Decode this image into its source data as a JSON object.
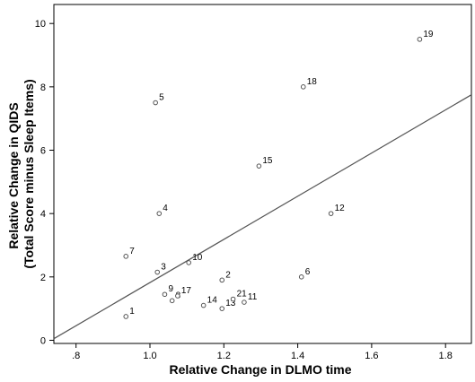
{
  "chart_data": {
    "type": "scatter",
    "title": "",
    "xlabel": "Relative Change in DLMO time",
    "ylabel_lines": [
      "Relative Change in QIDS",
      "(Total Score minus Sleep Items)"
    ],
    "xlim": [
      0.74,
      1.87
    ],
    "ylim": [
      -0.1,
      10.6
    ],
    "xticks": [
      ".8",
      "1.0",
      "1.2",
      "1.4",
      "1.6",
      "1.8"
    ],
    "xtick_values": [
      0.8,
      1.0,
      1.2,
      1.4,
      1.6,
      1.8
    ],
    "yticks": [
      "0",
      "2",
      "4",
      "6",
      "8",
      "10"
    ],
    "ytick_values": [
      0,
      2,
      4,
      6,
      8,
      10
    ],
    "points": [
      {
        "label": "1",
        "x": 0.935,
        "y": 0.75
      },
      {
        "label": "2",
        "x": 1.195,
        "y": 1.9
      },
      {
        "label": "3",
        "x": 1.02,
        "y": 2.15
      },
      {
        "label": "4",
        "x": 1.025,
        "y": 4.0
      },
      {
        "label": "5",
        "x": 1.015,
        "y": 7.5
      },
      {
        "label": "6",
        "x": 1.41,
        "y": 2.0
      },
      {
        "label": "7",
        "x": 0.935,
        "y": 2.65
      },
      {
        "label": "8",
        "x": 1.06,
        "y": 1.25
      },
      {
        "label": "9",
        "x": 1.04,
        "y": 1.45
      },
      {
        "label": "10",
        "x": 1.105,
        "y": 2.45
      },
      {
        "label": "11",
        "x": 1.255,
        "y": 1.2
      },
      {
        "label": "12",
        "x": 1.49,
        "y": 4.0
      },
      {
        "label": "13",
        "x": 1.195,
        "y": 1.0
      },
      {
        "label": "14",
        "x": 1.145,
        "y": 1.1
      },
      {
        "label": "15",
        "x": 1.295,
        "y": 5.5
      },
      {
        "label": "17",
        "x": 1.075,
        "y": 1.4
      },
      {
        "label": "18",
        "x": 1.415,
        "y": 8.0
      },
      {
        "label": "19",
        "x": 1.73,
        "y": 9.5
      },
      {
        "label": "21",
        "x": 1.225,
        "y": 1.3
      }
    ],
    "fit_line": {
      "x0": 0.74,
      "y0": 0.05,
      "x1": 1.87,
      "y1": 7.75
    },
    "grid": false,
    "legend": "none"
  }
}
